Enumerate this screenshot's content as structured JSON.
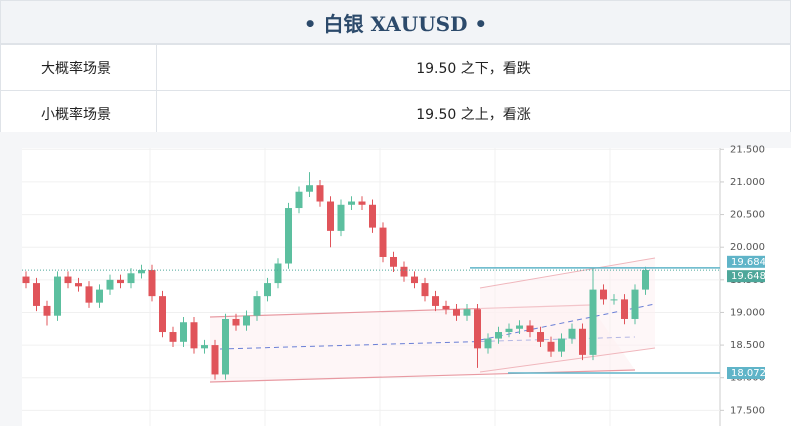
{
  "header": {
    "title": "• 白银 XAUUSD •"
  },
  "table": {
    "rows": [
      [
        "大概率场景",
        "19.50 之下，看跌"
      ],
      [
        "小概率场景",
        "19.50 之上，看涨"
      ]
    ]
  },
  "chart_data": {
    "type": "candlestick",
    "up_color": "#5cbf9f",
    "down_color": "#e0545a",
    "ylim": [
      17.26,
      21.52
    ],
    "yticks": [
      {
        "value": 17.5,
        "label": "17.500"
      },
      {
        "value": 18,
        "label": "18.000"
      },
      {
        "value": 18.5,
        "label": "18.500"
      },
      {
        "value": 19,
        "label": "19.000"
      },
      {
        "value": 19.5,
        "label": "19.500"
      },
      {
        "value": 20,
        "label": "20.000"
      },
      {
        "value": 20.5,
        "label": "20.500"
      },
      {
        "value": 21,
        "label": "21.000"
      },
      {
        "value": 21.5,
        "label": "21.500"
      }
    ],
    "open": [
      19.55,
      19.45,
      19.1,
      18.95,
      19.55,
      19.45,
      19.4,
      19.15,
      19.35,
      19.5,
      19.45,
      19.6,
      19.65,
      19.25,
      18.7,
      18.55,
      18.85,
      18.45,
      18.5,
      18.05,
      18.9,
      18.8,
      18.95,
      19.25,
      19.45,
      19.75,
      20.6,
      20.85,
      20.95,
      20.7,
      20.25,
      20.65,
      20.7,
      20.65,
      20.3,
      19.85,
      19.7,
      19.55,
      19.45,
      19.25,
      19.1,
      19.05,
      18.95,
      19.05,
      18.45,
      18.6,
      18.7,
      18.75,
      18.8,
      18.7,
      18.55,
      18.4,
      18.6,
      18.75,
      18.35,
      19.35,
      19.2,
      19.2,
      18.9,
      19.35
    ],
    "high": [
      19.63,
      19.53,
      19.18,
      19.63,
      19.63,
      19.53,
      19.48,
      19.43,
      19.58,
      19.58,
      19.68,
      19.73,
      19.73,
      19.33,
      18.78,
      18.93,
      18.93,
      18.58,
      18.58,
      18.98,
      18.98,
      19.03,
      19.33,
      19.53,
      19.83,
      20.68,
      20.93,
      21.15,
      21.03,
      20.78,
      20.73,
      20.78,
      20.78,
      20.73,
      20.38,
      19.93,
      19.78,
      19.63,
      19.53,
      19.33,
      19.18,
      19.13,
      19.13,
      19.13,
      18.68,
      18.78,
      18.83,
      18.88,
      18.88,
      18.78,
      18.63,
      18.68,
      18.83,
      18.83,
      19.68,
      19.43,
      19.28,
      19.28,
      19.43,
      19.7
    ],
    "low": [
      19.37,
      19.02,
      18.8,
      18.87,
      19.37,
      19.32,
      19.07,
      19.07,
      19.27,
      19.37,
      19.37,
      19.52,
      19.17,
      18.62,
      18.47,
      18.47,
      18.37,
      18.37,
      17.97,
      17.97,
      18.72,
      18.72,
      18.87,
      19.17,
      19.37,
      19.67,
      20.52,
      20.77,
      20.62,
      20.0,
      20.17,
      20.57,
      20.57,
      20.22,
      19.77,
      19.62,
      19.47,
      19.37,
      19.17,
      19.02,
      18.97,
      18.87,
      18.87,
      18.15,
      18.37,
      18.52,
      18.62,
      18.67,
      18.62,
      18.47,
      18.32,
      18.32,
      18.52,
      18.27,
      18.27,
      19.12,
      19.12,
      18.82,
      18.82,
      19.27
    ],
    "close": [
      19.45,
      19.1,
      18.95,
      19.55,
      19.45,
      19.4,
      19.15,
      19.35,
      19.5,
      19.45,
      19.6,
      19.65,
      19.25,
      18.7,
      18.55,
      18.85,
      18.45,
      18.5,
      18.05,
      18.9,
      18.8,
      18.95,
      19.25,
      19.45,
      19.75,
      20.6,
      20.85,
      20.95,
      20.7,
      20.25,
      20.65,
      20.7,
      20.65,
      20.3,
      19.85,
      19.7,
      19.55,
      19.45,
      19.25,
      19.1,
      19.05,
      18.95,
      19.05,
      18.45,
      18.6,
      18.7,
      18.75,
      18.8,
      18.7,
      18.55,
      18.4,
      18.6,
      18.75,
      18.35,
      19.35,
      19.2,
      19.2,
      18.9,
      19.35,
      19.65
    ],
    "price_lines": [
      {
        "value": 19.684,
        "color": "#5fb4c8"
      },
      {
        "value": 19.648,
        "color": "#4da79a"
      },
      {
        "value": 18.072,
        "color": "#5fb4c8"
      }
    ]
  }
}
